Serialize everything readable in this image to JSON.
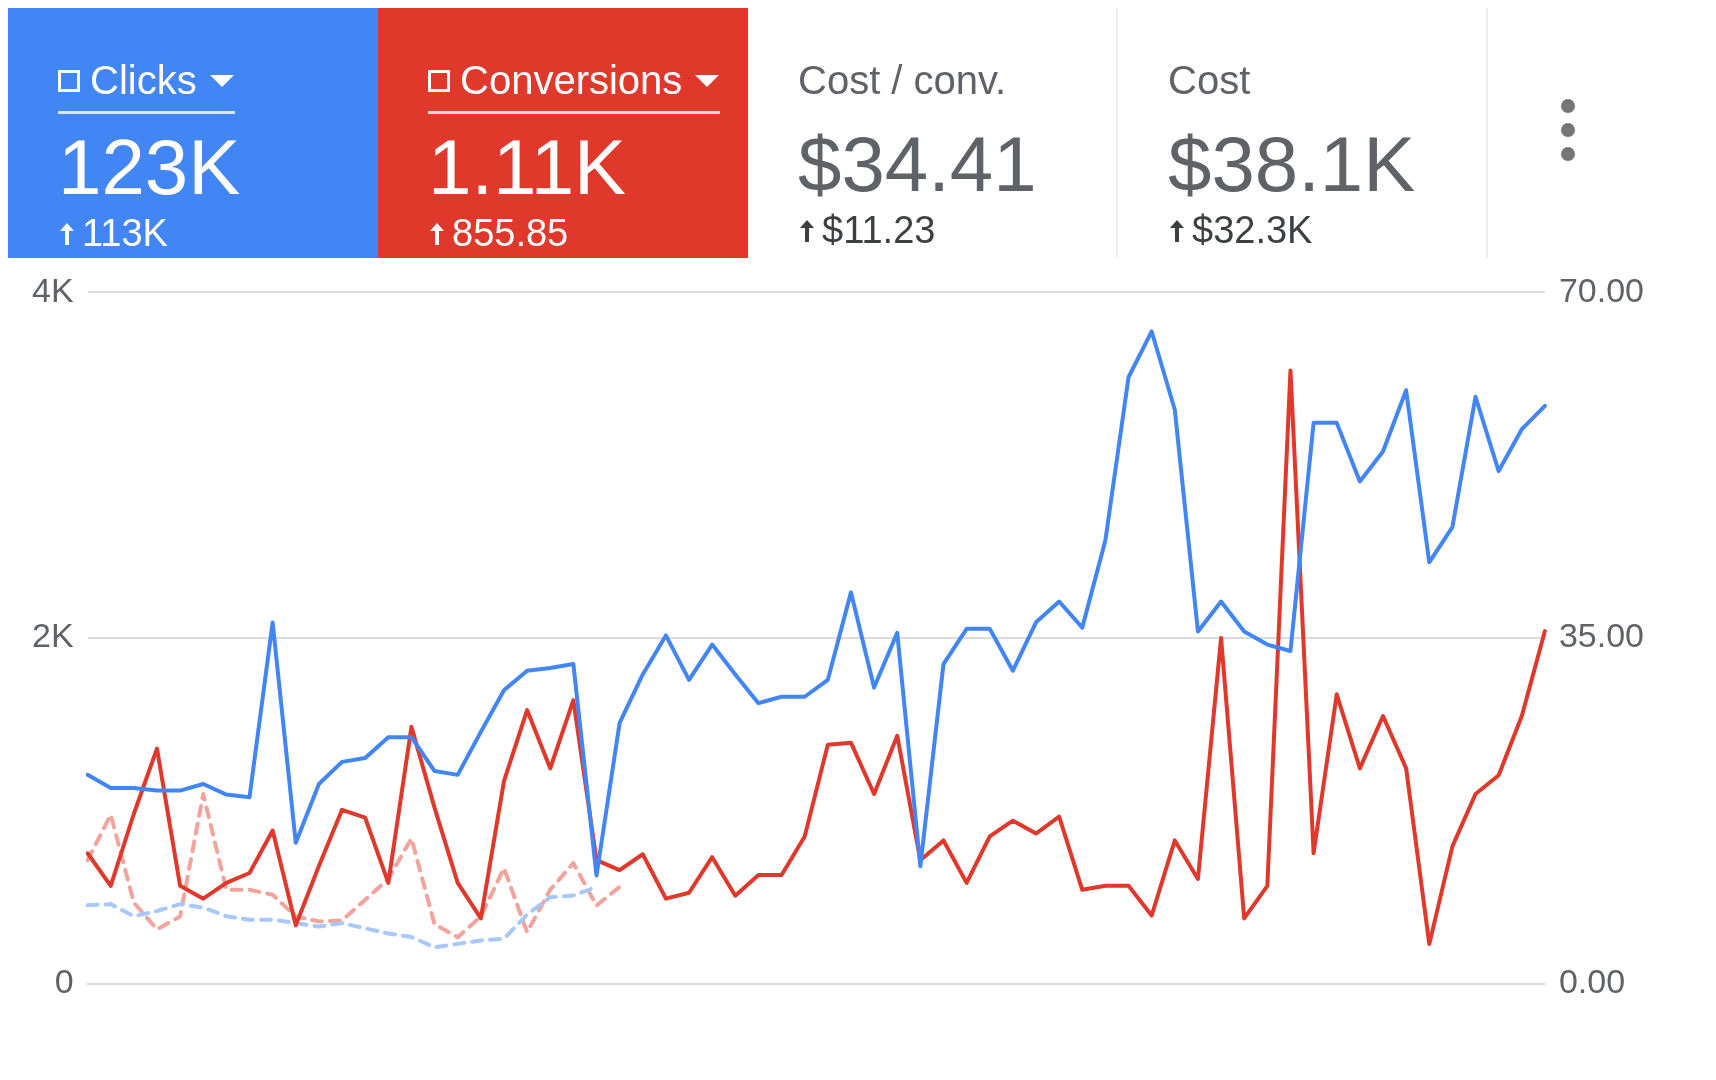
{
  "chart_data": {
    "type": "line",
    "categories": [
      null,
      null,
      null,
      null,
      null,
      null,
      null,
      null,
      null,
      null,
      null,
      null,
      null,
      null,
      null,
      null,
      null,
      null,
      null,
      null,
      null,
      null,
      null,
      null,
      null,
      null,
      null,
      null,
      null,
      null,
      null,
      null,
      null,
      null,
      null,
      null,
      null,
      null,
      null,
      null,
      null,
      null,
      null,
      null,
      null,
      null,
      null,
      null,
      null,
      null,
      null,
      null,
      null,
      null,
      null,
      null,
      null,
      null,
      null,
      null,
      null,
      null,
      null,
      null
    ],
    "series": [
      {
        "name": "Clicks",
        "color": "#4285f4",
        "values": [
          1208,
          1132,
          1132,
          1117,
          1117,
          1155,
          1094,
          1079,
          2090,
          815,
          1155,
          1283,
          1306,
          1426,
          1426,
          1230,
          1208,
          1457,
          1698,
          1811,
          1826,
          1849,
          626,
          1509,
          1789,
          2015,
          1758,
          1962,
          1789,
          1623,
          1660,
          1660,
          1758,
          2264,
          1713,
          2030,
          679,
          1849,
          2053,
          2053,
          1811,
          2091,
          2211,
          2060,
          2566,
          3509,
          3774,
          3321,
          2038,
          2211,
          2038,
          1962,
          1925,
          3245,
          3245,
          2906,
          3079,
          3434,
          2438,
          2642,
          3396,
          2966,
          3208,
          3343
        ]
      },
      {
        "name": "Conversions",
        "color": "#e0392b",
        "axis": "y2",
        "values": [
          13.2,
          9.9,
          17.2,
          23.8,
          9.9,
          8.6,
          10.2,
          11.2,
          15.5,
          5.9,
          11.9,
          17.6,
          16.8,
          10.2,
          26.0,
          17.8,
          10.2,
          6.6,
          20.5,
          27.7,
          21.8,
          28.7,
          12.5,
          11.5,
          13.1,
          8.6,
          9.2,
          12.8,
          8.9,
          11.0,
          11.0,
          14.9,
          24.2,
          24.4,
          19.2,
          25.1,
          12.5,
          14.5,
          10.2,
          14.9,
          16.5,
          15.2,
          16.9,
          9.5,
          9.9,
          9.9,
          6.9,
          14.5,
          10.6,
          35.0,
          6.6,
          9.9,
          62.1,
          13.2,
          29.3,
          21.8,
          27.1,
          21.8,
          4.0,
          13.9,
          19.2,
          21.1,
          27.1,
          35.7
        ]
      },
      {
        "color": "#a8c7fa",
        "line_style": "dashed",
        "values": [
          453,
          460,
          390,
          420,
          460,
          440,
          390,
          370,
          370,
          350,
          330,
          350,
          320,
          290,
          270,
          210,
          230,
          250,
          260,
          400,
          500,
          510,
          560,
          null,
          null,
          null,
          null,
          null,
          null,
          null,
          null,
          null,
          null,
          null,
          null,
          null,
          null,
          null,
          null,
          null,
          null,
          null,
          null,
          null,
          null,
          null,
          null,
          null,
          null,
          null,
          null,
          null,
          null,
          null,
          null,
          null,
          null,
          null,
          null,
          null,
          null,
          null,
          null,
          null
        ]
      },
      {
        "color": "#f2a49c",
        "axis": "y2",
        "line_style": "dashed",
        "values": [
          12.5,
          17.1,
          8.2,
          5.5,
          6.8,
          19.2,
          9.5,
          9.5,
          9.0,
          6.8,
          6.3,
          6.4,
          8.5,
          10.6,
          14.7,
          6.0,
          4.7,
          6.8,
          11.7,
          5.2,
          9.5,
          12.2,
          7.9,
          9.8,
          null,
          null,
          null,
          null,
          null,
          null,
          null,
          null,
          null,
          null,
          null,
          null,
          null,
          null,
          null,
          null,
          null,
          null,
          null,
          null,
          null,
          null,
          null,
          null,
          null,
          null,
          null,
          null,
          null,
          null,
          null,
          null,
          null,
          null,
          null,
          null,
          null,
          null,
          null,
          null
        ]
      }
    ],
    "ylim": [
      0,
      4000
    ],
    "yticks": [
      0,
      {
        "value": 2000,
        "label": "2K"
      },
      {
        "value": 4000,
        "label": "4K"
      }
    ],
    "y2lim": [
      0,
      70
    ],
    "y2ticks": [
      {
        "value": 0,
        "label": "0.00"
      },
      {
        "value": 35,
        "label": "35.00"
      },
      {
        "value": 70,
        "label": "70.00"
      }
    ],
    "grid": "y",
    "legend": "top",
    "marker": "none",
    "line_style": "solid",
    "annotations": [
      "123K",
      "113K",
      "1.11K",
      "855.85",
      "Cost / conv.",
      "$34.41",
      "$11.23",
      "Cost",
      "$38.1K",
      "$32.3K"
    ]
  }
}
